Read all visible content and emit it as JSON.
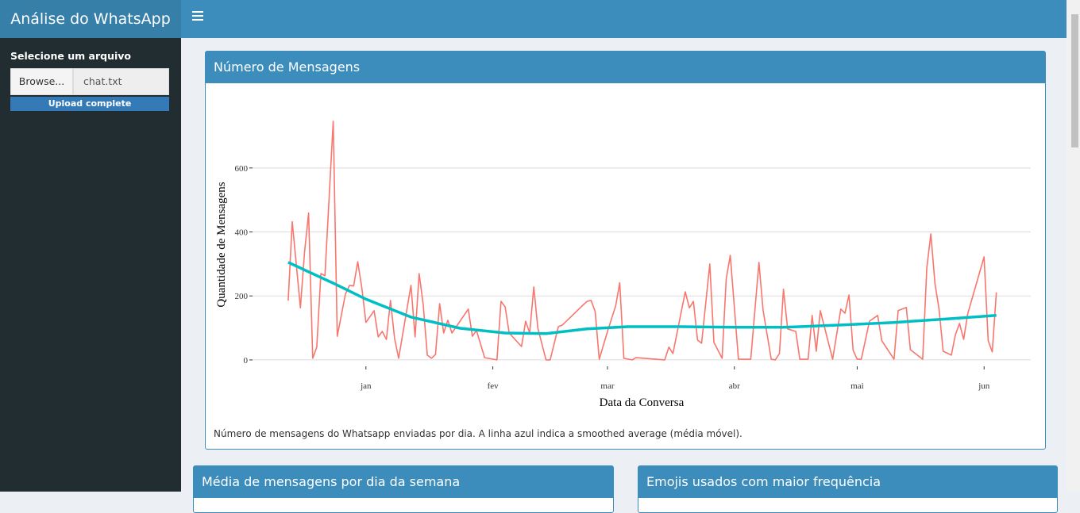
{
  "header": {
    "title": "Análise do WhatsApp"
  },
  "sidebar": {
    "label": "Selecione um arquivo",
    "button": "Browse...",
    "file": "chat.txt",
    "status": "Upload complete"
  },
  "boxes": [
    {
      "title": "Número de Mensagens",
      "caption": "Número de mensagens do Whatsapp enviadas por dia. A linha azul indica a smoothed average (média móvel)."
    },
    {
      "title": "Média de mensagens por dia da semana"
    },
    {
      "title": "Emojis usados com maior frequência"
    }
  ],
  "chart_data": {
    "type": "line",
    "xlabel": "Data da Conversa",
    "ylabel": "Quantidade de Mensagens",
    "xlim": [
      -26.7,
      163.4
    ],
    "ylim": [
      -20,
      840
    ],
    "xticks": [
      {
        "value": 1,
        "label": "jan"
      },
      {
        "value": 32,
        "label": "fev"
      },
      {
        "value": 60,
        "label": "mar"
      },
      {
        "value": 91,
        "label": "abr"
      },
      {
        "value": 121,
        "label": "mai"
      },
      {
        "value": 152,
        "label": "jun"
      }
    ],
    "yticks": [
      0,
      200,
      400,
      600
    ],
    "grid": true,
    "series": [
      {
        "color": "#f8766d",
        "x": [
          -18,
          -17,
          -15,
          -14,
          -13,
          -12,
          -11,
          -10,
          -9,
          -7,
          -6,
          -4,
          -3,
          -2,
          -1,
          0,
          1,
          3,
          4,
          5,
          6,
          7,
          8,
          9,
          12,
          13,
          14,
          15,
          16,
          17,
          18,
          19,
          20,
          21,
          22,
          26,
          27,
          28,
          30,
          33,
          34,
          35,
          36,
          39,
          40,
          41,
          42,
          43,
          45,
          46,
          48,
          49,
          54,
          55,
          56,
          57,
          58,
          60,
          62,
          63,
          64,
          66,
          67,
          74,
          75,
          76,
          79,
          80,
          81,
          82,
          83,
          85,
          86,
          88,
          89,
          90,
          92,
          93,
          95,
          97,
          98,
          100,
          101,
          102,
          103,
          104,
          106,
          107,
          109,
          110,
          111,
          112,
          115,
          117,
          118,
          119,
          120,
          121,
          122,
          124,
          126,
          127,
          130,
          131,
          133,
          134,
          137,
          138,
          139,
          140,
          141,
          142,
          144,
          145,
          146,
          147,
          148,
          152,
          153,
          154,
          155
        ],
        "values": [
          185,
          432,
          163,
          337,
          459,
          5,
          40,
          270,
          263,
          746,
          74,
          206,
          233,
          231,
          307,
          226,
          117,
          154,
          72,
          89,
          64,
          186,
          67,
          5,
          233,
          72,
          270,
          171,
          15,
          5,
          17,
          176,
          84,
          124,
          84,
          159,
          74,
          92,
          7,
          0,
          183,
          166,
          84,
          42,
          121,
          84,
          228,
          99,
          0,
          0,
          104,
          109,
          171,
          183,
          186,
          151,
          2,
          89,
          169,
          241,
          5,
          0,
          7,
          0,
          40,
          20,
          213,
          163,
          183,
          62,
          52,
          300,
          55,
          5,
          253,
          327,
          2,
          2,
          2,
          305,
          156,
          2,
          0,
          20,
          221,
          97,
          89,
          2,
          2,
          139,
          27,
          154,
          2,
          159,
          146,
          203,
          30,
          2,
          2,
          121,
          139,
          60,
          2,
          154,
          164,
          32,
          2,
          288,
          394,
          238,
          159,
          27,
          15,
          79,
          114,
          64,
          144,
          322,
          60,
          25,
          211
        ]
      },
      {
        "color": "#00bfc4",
        "x": [
          -18,
          -7,
          1,
          12,
          24,
          35,
          45,
          55,
          65,
          78,
          92,
          103,
          117,
          130,
          144,
          155
        ],
        "values": [
          305,
          240,
          190,
          134,
          99,
          84,
          82,
          97,
          104,
          104,
          102,
          102,
          109,
          117,
          129,
          139
        ]
      }
    ]
  }
}
